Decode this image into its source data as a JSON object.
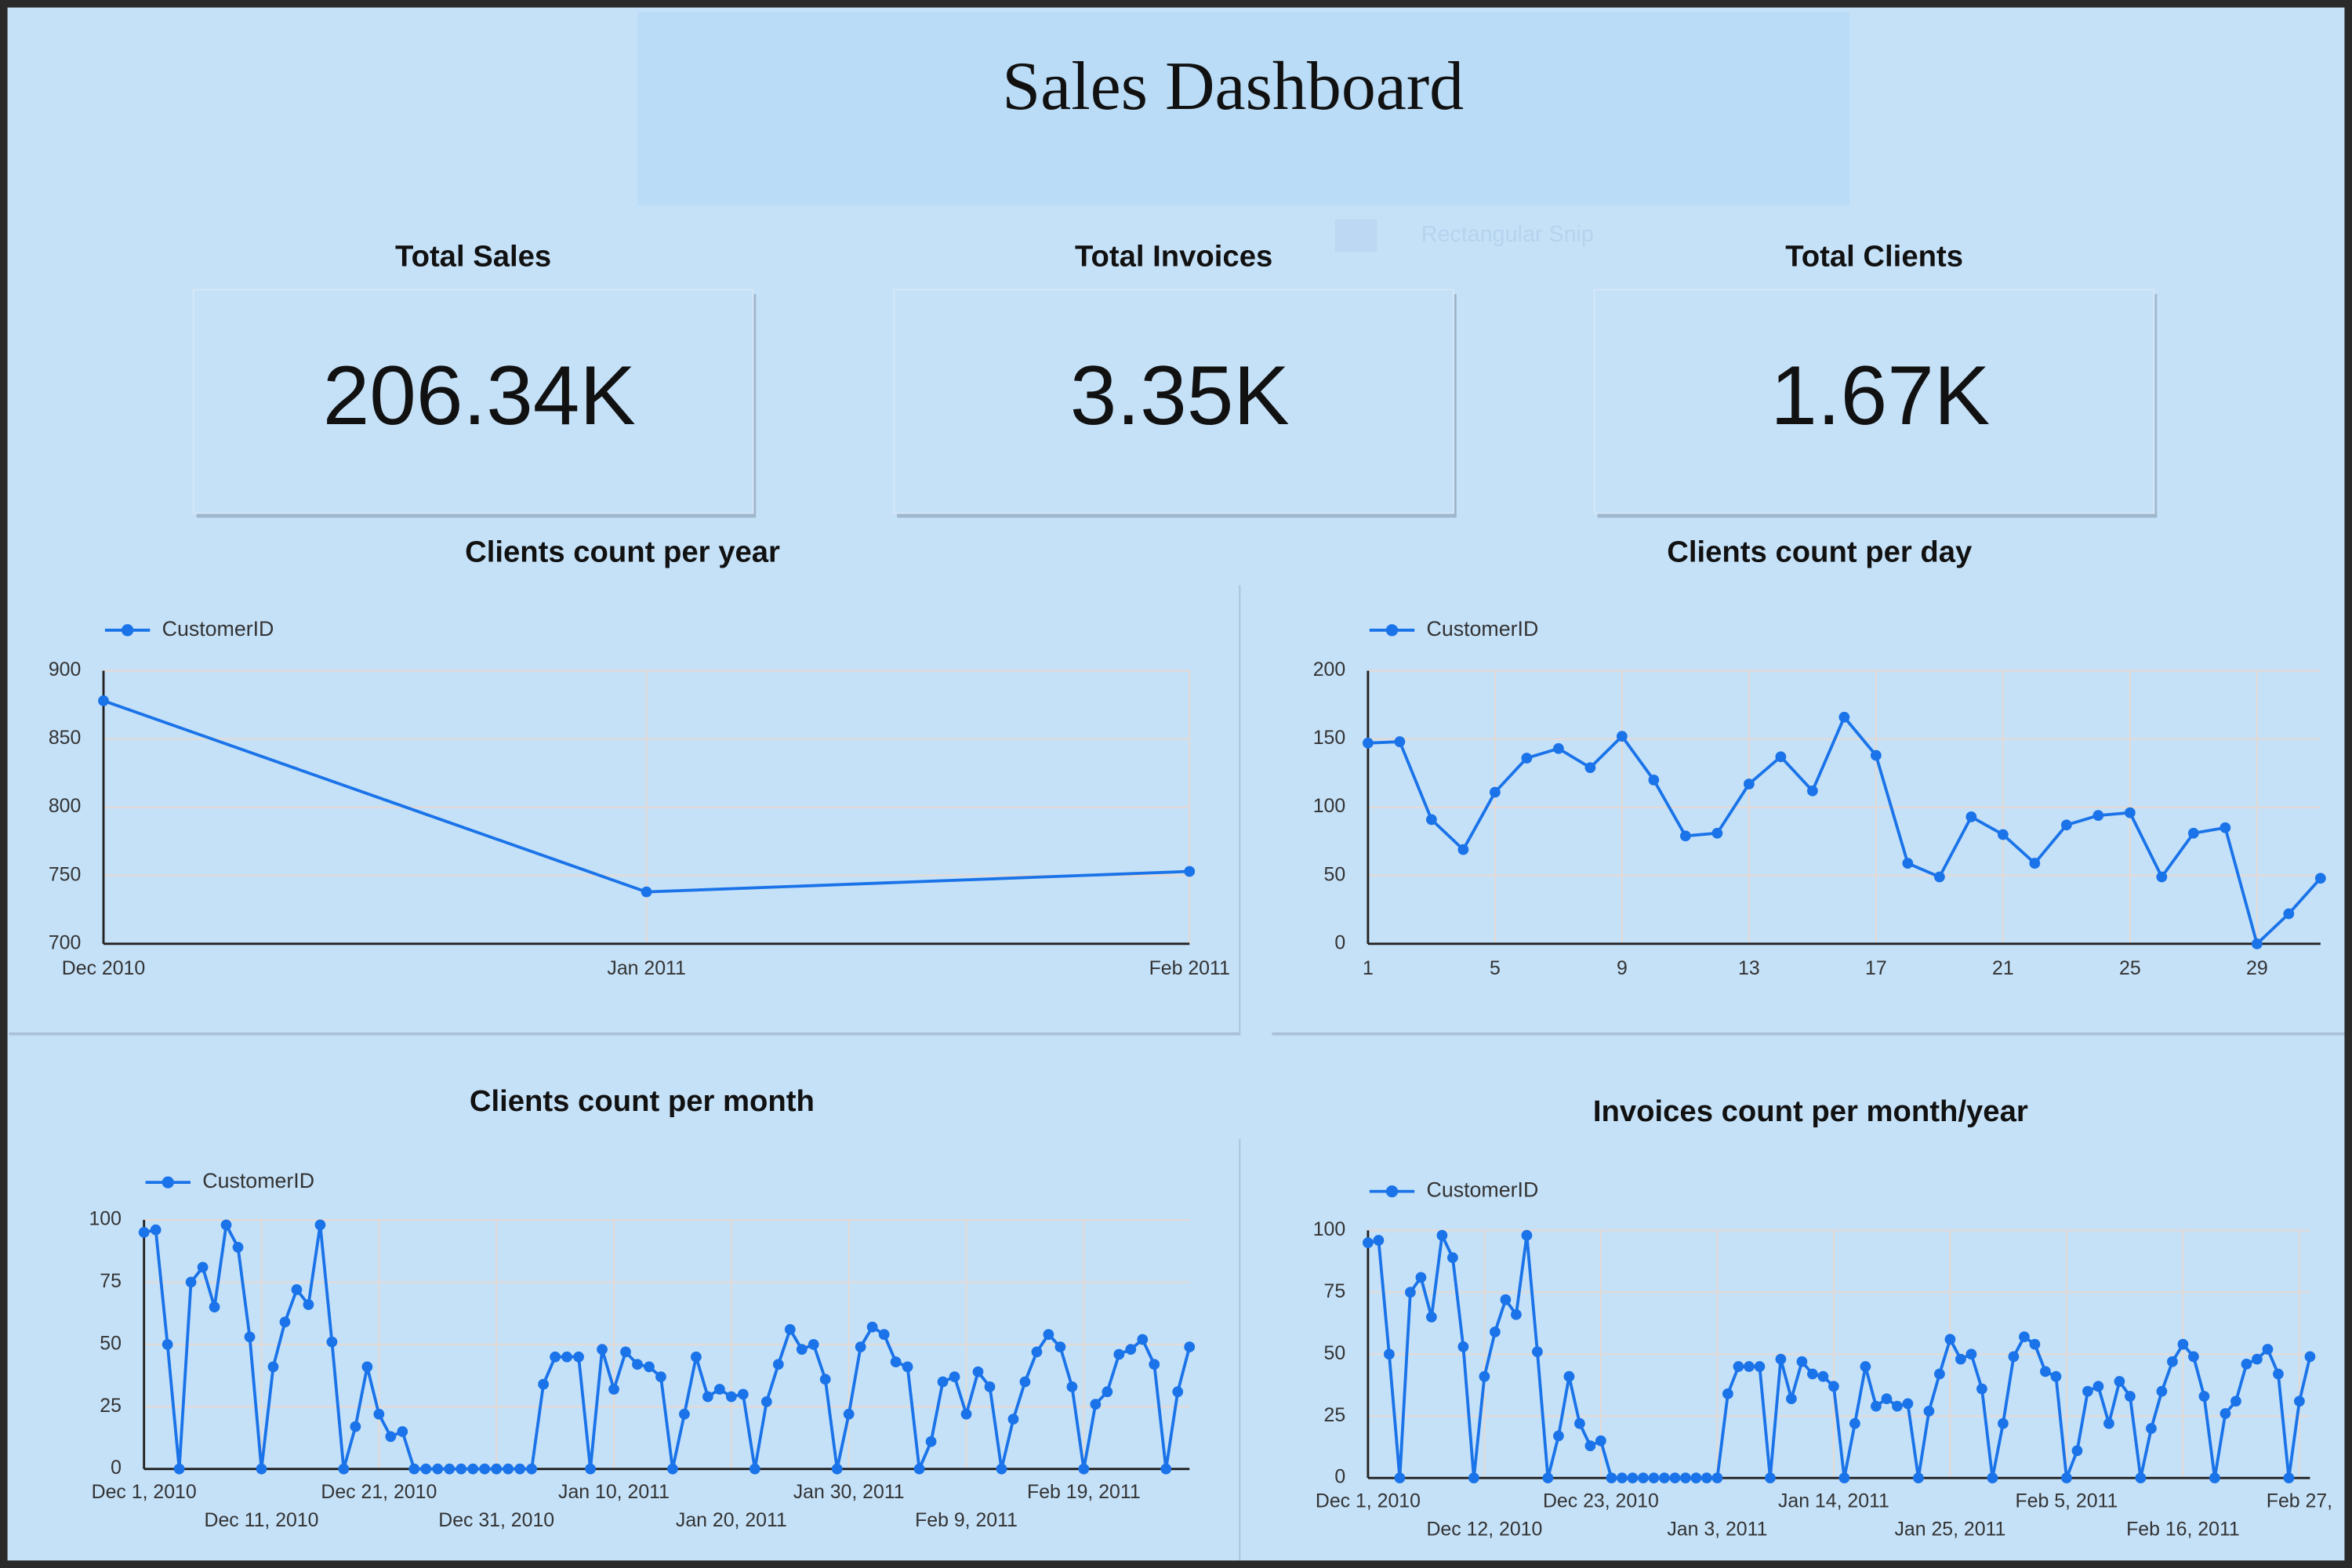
{
  "header": {
    "title": "Sales Dashboard"
  },
  "overlay_text": "Rectangular Snip",
  "kpis": [
    {
      "label": "Total Sales",
      "value": "206.34K"
    },
    {
      "label": "Total Invoices",
      "value": "3.35K"
    },
    {
      "label": "Total Clients",
      "value": "1.67K"
    }
  ],
  "chart_data": [
    {
      "type": "line",
      "title": "Clients count per year",
      "categories": [
        "Dec 2010",
        "Jan 2011",
        "Feb 2011"
      ],
      "series": [
        {
          "name": "CustomerID",
          "color": "#1a73e8",
          "values": [
            878,
            738,
            753
          ]
        }
      ],
      "ylim": [
        700,
        900
      ],
      "yticks": [
        700,
        750,
        800,
        850,
        900
      ],
      "grid": true,
      "legend": "top-left"
    },
    {
      "type": "line",
      "title": "Clients count per day",
      "x": [
        1,
        2,
        3,
        4,
        5,
        6,
        7,
        8,
        9,
        10,
        11,
        12,
        13,
        14,
        15,
        16,
        17,
        18,
        19,
        20,
        21,
        22,
        23,
        24,
        25,
        26,
        27,
        28,
        29,
        30,
        31
      ],
      "xlim": [
        1,
        31
      ],
      "xticks": [
        1,
        5,
        9,
        13,
        17,
        21,
        25,
        29
      ],
      "series": [
        {
          "name": "CustomerID",
          "color": "#1a73e8",
          "values": [
            147,
            148,
            91,
            69,
            111,
            136,
            143,
            129,
            152,
            120,
            79,
            81,
            117,
            137,
            112,
            166,
            138,
            59,
            49,
            93,
            80,
            59,
            87,
            94,
            96,
            49,
            81,
            85,
            0,
            22,
            48
          ]
        }
      ],
      "ylim": [
        0,
        200
      ],
      "yticks": [
        0,
        50,
        100,
        150,
        200
      ],
      "grid": true,
      "legend": "top-left"
    },
    {
      "type": "line",
      "title": "Clients count per month",
      "x": [
        "2010-12-01",
        "2010-12-02",
        "2010-12-03",
        "2010-12-04",
        "2010-12-05",
        "2010-12-06",
        "2010-12-07",
        "2010-12-08",
        "2010-12-09",
        "2010-12-10",
        "2010-12-11",
        "2010-12-12",
        "2010-12-13",
        "2010-12-14",
        "2010-12-15",
        "2010-12-16",
        "2010-12-17",
        "2010-12-18",
        "2010-12-19",
        "2010-12-20",
        "2010-12-21",
        "2010-12-22",
        "2010-12-23",
        "2010-12-24",
        "2010-12-25",
        "2010-12-26",
        "2010-12-27",
        "2010-12-28",
        "2010-12-29",
        "2010-12-30",
        "2010-12-31",
        "2011-01-01",
        "2011-01-02",
        "2011-01-03",
        "2011-01-04",
        "2011-01-05",
        "2011-01-06",
        "2011-01-07",
        "2011-01-08",
        "2011-01-09",
        "2011-01-10",
        "2011-01-11",
        "2011-01-12",
        "2011-01-13",
        "2011-01-14",
        "2011-01-15",
        "2011-01-16",
        "2011-01-17",
        "2011-01-18",
        "2011-01-19",
        "2011-01-20",
        "2011-01-21",
        "2011-01-22",
        "2011-01-23",
        "2011-01-24",
        "2011-01-25",
        "2011-01-26",
        "2011-01-27",
        "2011-01-28",
        "2011-01-29",
        "2011-01-30",
        "2011-01-31",
        "2011-02-01",
        "2011-02-02",
        "2011-02-03",
        "2011-02-04",
        "2011-02-05",
        "2011-02-06",
        "2011-02-07",
        "2011-02-08",
        "2011-02-09",
        "2011-02-10",
        "2011-02-11",
        "2011-02-12",
        "2011-02-13",
        "2011-02-14",
        "2011-02-15",
        "2011-02-16",
        "2011-02-17",
        "2011-02-18",
        "2011-02-19",
        "2011-02-20",
        "2011-02-21",
        "2011-02-22",
        "2011-02-23",
        "2011-02-24",
        "2011-02-25",
        "2011-02-26",
        "2011-02-27",
        "2011-02-28"
      ],
      "xlim": [
        "2010-12-01",
        "2011-02-28"
      ],
      "xticks": [
        {
          "value": "2010-12-01",
          "label": "Dec 1, 2010"
        },
        {
          "value": "2010-12-11",
          "label": "Dec 11, 2010"
        },
        {
          "value": "2010-12-21",
          "label": "Dec 21, 2010"
        },
        {
          "value": "2010-12-31",
          "label": "Dec 31, 2010"
        },
        {
          "value": "2011-01-10",
          "label": "Jan 10, 2011"
        },
        {
          "value": "2011-01-20",
          "label": "Jan 20, 2011"
        },
        {
          "value": "2011-01-30",
          "label": "Jan 30, 2011"
        },
        {
          "value": "2011-02-09",
          "label": "Feb 9, 2011"
        },
        {
          "value": "2011-02-19",
          "label": "Feb 19, 2011"
        }
      ],
      "series": [
        {
          "name": "CustomerID",
          "color": "#1a73e8",
          "values": [
            95,
            96,
            50,
            0,
            75,
            81,
            65,
            98,
            89,
            53,
            0,
            41,
            59,
            72,
            66,
            98,
            51,
            0,
            17,
            41,
            22,
            13,
            15,
            0,
            0,
            0,
            0,
            0,
            0,
            0,
            0,
            0,
            0,
            0,
            34,
            45,
            45,
            45,
            0,
            48,
            32,
            47,
            42,
            41,
            37,
            0,
            22,
            45,
            29,
            32,
            29,
            30,
            0,
            27,
            42,
            56,
            48,
            50,
            36,
            0,
            22,
            49,
            57,
            54,
            43,
            41,
            0,
            11,
            35,
            37,
            22,
            39,
            33,
            0,
            20,
            35,
            47,
            54,
            49,
            33,
            0,
            26,
            31,
            46,
            48,
            52,
            42,
            0,
            31,
            49
          ]
        }
      ],
      "ylim": [
        0,
        100
      ],
      "yticks": [
        0,
        25,
        50,
        75,
        100
      ],
      "grid": true,
      "legend": "top-left"
    },
    {
      "type": "line",
      "title": "Invoices count per month/year",
      "x": [
        "2010-12-01",
        "2010-12-02",
        "2010-12-03",
        "2010-12-04",
        "2010-12-05",
        "2010-12-06",
        "2010-12-07",
        "2010-12-08",
        "2010-12-09",
        "2010-12-10",
        "2010-12-11",
        "2010-12-12",
        "2010-12-13",
        "2010-12-14",
        "2010-12-15",
        "2010-12-16",
        "2010-12-17",
        "2010-12-18",
        "2010-12-19",
        "2010-12-20",
        "2010-12-21",
        "2010-12-22",
        "2010-12-23",
        "2010-12-24",
        "2010-12-25",
        "2010-12-26",
        "2010-12-27",
        "2010-12-28",
        "2010-12-29",
        "2010-12-30",
        "2010-12-31",
        "2011-01-01",
        "2011-01-02",
        "2011-01-03",
        "2011-01-04",
        "2011-01-05",
        "2011-01-06",
        "2011-01-07",
        "2011-01-08",
        "2011-01-09",
        "2011-01-10",
        "2011-01-11",
        "2011-01-12",
        "2011-01-13",
        "2011-01-14",
        "2011-01-15",
        "2011-01-16",
        "2011-01-17",
        "2011-01-18",
        "2011-01-19",
        "2011-01-20",
        "2011-01-21",
        "2011-01-22",
        "2011-01-23",
        "2011-01-24",
        "2011-01-25",
        "2011-01-26",
        "2011-01-27",
        "2011-01-28",
        "2011-01-29",
        "2011-01-30",
        "2011-01-31",
        "2011-02-01",
        "2011-02-02",
        "2011-02-03",
        "2011-02-04",
        "2011-02-05",
        "2011-02-06",
        "2011-02-07",
        "2011-02-08",
        "2011-02-09",
        "2011-02-10",
        "2011-02-11",
        "2011-02-12",
        "2011-02-13",
        "2011-02-14",
        "2011-02-15",
        "2011-02-16",
        "2011-02-17",
        "2011-02-18",
        "2011-02-19",
        "2011-02-20",
        "2011-02-21",
        "2011-02-22",
        "2011-02-23",
        "2011-02-24",
        "2011-02-25",
        "2011-02-26",
        "2011-02-27",
        "2011-02-28"
      ],
      "xlim": [
        "2010-12-01",
        "2011-02-28"
      ],
      "xticks": [
        {
          "value": "2010-12-01",
          "label": "Dec 1, 2010"
        },
        {
          "value": "2010-12-12",
          "label": "Dec 12, 2010"
        },
        {
          "value": "2010-12-23",
          "label": "Dec 23, 2010"
        },
        {
          "value": "2011-01-03",
          "label": "Jan 3, 2011"
        },
        {
          "value": "2011-01-14",
          "label": "Jan 14, 2011"
        },
        {
          "value": "2011-01-25",
          "label": "Jan 25, 2011"
        },
        {
          "value": "2011-02-05",
          "label": "Feb 5, 2011"
        },
        {
          "value": "2011-02-16",
          "label": "Feb 16, 2011"
        },
        {
          "value": "2011-02-27",
          "label": "Feb 27,"
        }
      ],
      "series": [
        {
          "name": "CustomerID",
          "color": "#1a73e8",
          "values": [
            95,
            96,
            50,
            0,
            75,
            81,
            65,
            98,
            89,
            53,
            0,
            41,
            59,
            72,
            66,
            98,
            51,
            0,
            17,
            41,
            22,
            13,
            15,
            0,
            0,
            0,
            0,
            0,
            0,
            0,
            0,
            0,
            0,
            0,
            34,
            45,
            45,
            45,
            0,
            48,
            32,
            47,
            42,
            41,
            37,
            0,
            22,
            45,
            29,
            32,
            29,
            30,
            0,
            27,
            42,
            56,
            48,
            50,
            36,
            0,
            22,
            49,
            57,
            54,
            43,
            41,
            0,
            11,
            35,
            37,
            22,
            39,
            33,
            0,
            20,
            35,
            47,
            54,
            49,
            33,
            0,
            26,
            31,
            46,
            48,
            52,
            42,
            0,
            31,
            49
          ]
        }
      ],
      "ylim": [
        0,
        100
      ],
      "yticks": [
        0,
        25,
        50,
        75,
        100
      ],
      "grid": true,
      "legend": "top-left"
    }
  ]
}
